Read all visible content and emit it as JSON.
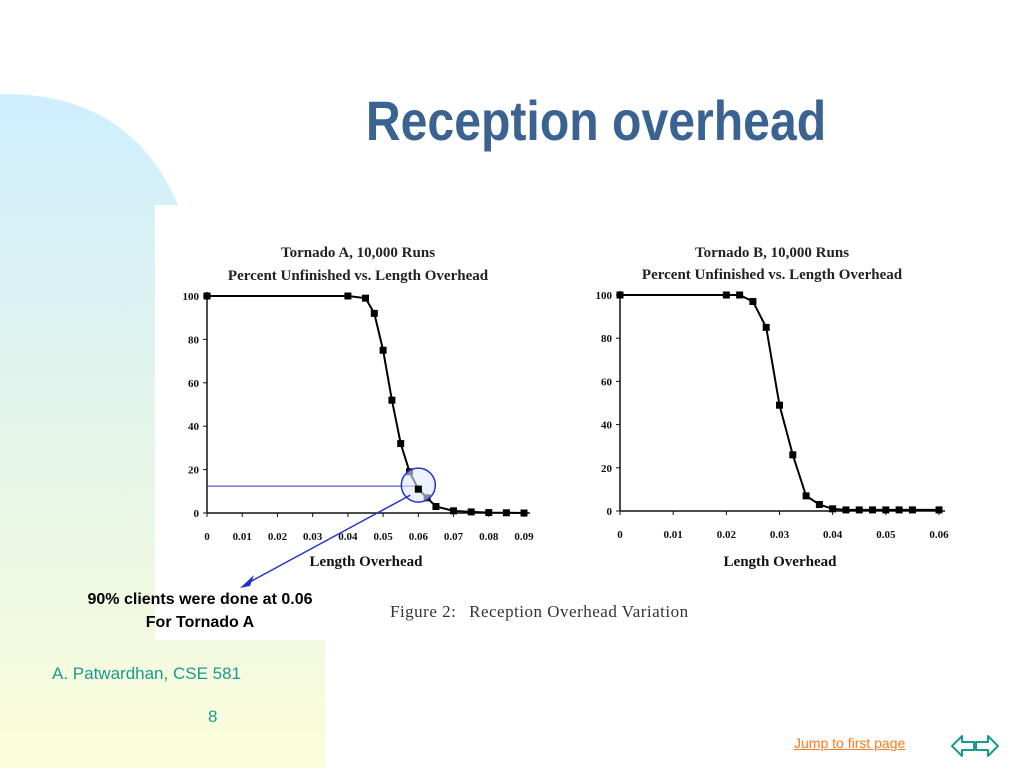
{
  "slide": {
    "title": "Reception overhead",
    "annotation_line1": "90% clients were done at 0.06",
    "annotation_line2": "For Tornado A",
    "caption_label": "Figure 2:",
    "caption_text": "Reception Overhead Variation",
    "author": "A. Patwardhan, CSE 581",
    "page_number": "8",
    "jump_link": "Jump to first page",
    "nav_prev_icon": "double-arrow-left-icon",
    "nav_next_icon": "double-arrow-right-icon",
    "colors": {
      "title": "#3a6391",
      "footer_text": "#1a9a8f",
      "link": "#ff7a1a",
      "annotation_line": "#2233cc",
      "highlight": "#dfe8ff"
    }
  },
  "chart_data": [
    {
      "type": "line",
      "title": "Tornado A, 10,000 Runs",
      "subtitle": "Percent Unfinished vs. Length Overhead",
      "xlabel": "Length Overhead",
      "ylabel": "",
      "xlim": [
        0,
        0.09
      ],
      "ylim": [
        0,
        100
      ],
      "xticks": [
        "0",
        "0.01",
        "0.02",
        "0.03",
        "0.04",
        "0.05",
        "0.06",
        "0.07",
        "0.08",
        "0.09"
      ],
      "yticks": [
        "0",
        "20",
        "40",
        "60",
        "80",
        "100"
      ],
      "x": [
        0,
        0.04,
        0.045,
        0.0475,
        0.05,
        0.0525,
        0.055,
        0.0575,
        0.06,
        0.0625,
        0.065,
        0.07,
        0.075,
        0.08,
        0.085,
        0.09
      ],
      "y": [
        100,
        100,
        99,
        92,
        75,
        52,
        32,
        19,
        11,
        7,
        3,
        1,
        0.5,
        0.2,
        0.1,
        0
      ],
      "highlight_point": {
        "x": 0.06,
        "y": 11
      }
    },
    {
      "type": "line",
      "title": "Tornado B, 10,000 Runs",
      "subtitle": "Percent Unfinished vs. Length Overhead",
      "xlabel": "Length Overhead",
      "ylabel": "",
      "xlim": [
        0,
        0.06
      ],
      "ylim": [
        0,
        100
      ],
      "xticks": [
        "0",
        "0.01",
        "0.02",
        "0.03",
        "0.04",
        "0.05",
        "0.06"
      ],
      "yticks": [
        "0",
        "20",
        "40",
        "60",
        "80",
        "100"
      ],
      "x": [
        0,
        0.02,
        0.0225,
        0.025,
        0.0275,
        0.03,
        0.0325,
        0.035,
        0.0375,
        0.04,
        0.0425,
        0.045,
        0.0475,
        0.05,
        0.0525,
        0.055,
        0.06
      ],
      "y": [
        100,
        100,
        100,
        97,
        85,
        49,
        26,
        7,
        3,
        1,
        0.5,
        0.5,
        0.5,
        0.5,
        0.5,
        0.5,
        0.5
      ]
    }
  ]
}
